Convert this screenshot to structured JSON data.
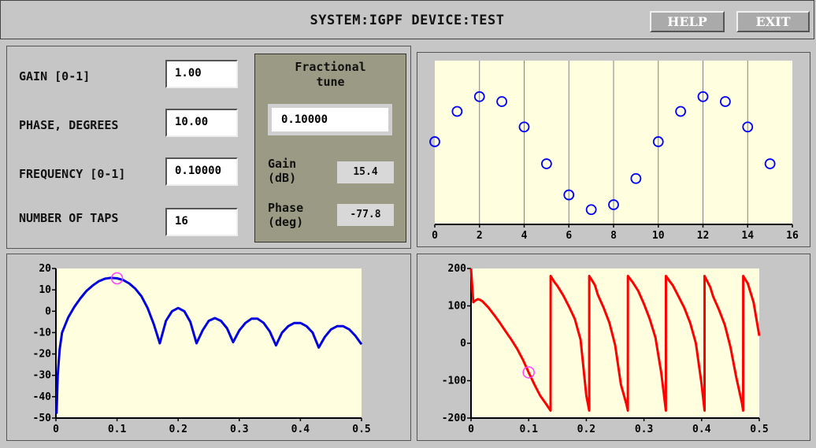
{
  "title": "SYSTEM:IGPF DEVICE:TEST",
  "buttons": {
    "help": "HELP",
    "exit": "EXIT"
  },
  "params": [
    {
      "label": "GAIN [0-1]",
      "value": "1.00"
    },
    {
      "label": "PHASE, DEGREES",
      "value": "10.00"
    },
    {
      "label": "FREQUENCY [0-1]",
      "value": "0.10000"
    },
    {
      "label": "NUMBER OF TAPS",
      "value": "16"
    }
  ],
  "tune": {
    "title_line1": "Fractional",
    "title_line2": "tune",
    "value": "0.10000",
    "gain_label1": "Gain",
    "gain_label2": "(dB)",
    "gain_value": "15.4",
    "phase_label1": "Phase",
    "phase_label2": "(deg)",
    "phase_value": "-77.8"
  },
  "colors": {
    "plot_bg": "#ffffe0",
    "taps": "#0000ff",
    "gain_curve": "#0000e0",
    "phase_curve": "#ff0000",
    "marker": "#ff40ff"
  },
  "chart_data": [
    {
      "type": "scatter",
      "x": [
        0,
        1,
        2,
        3,
        4,
        5,
        6,
        7,
        8,
        9,
        10,
        11,
        12,
        13,
        14,
        15
      ],
      "y": [
        0.01,
        0.38,
        0.56,
        0.5,
        0.19,
        -0.26,
        -0.64,
        -0.82,
        -0.76,
        -0.44,
        0.01,
        0.38,
        0.56,
        0.5,
        0.19,
        -0.26
      ],
      "xlim": [
        0,
        16
      ],
      "ylim": [
        -1,
        1
      ],
      "xticks": [
        0,
        2,
        4,
        6,
        8,
        10,
        12,
        14,
        16
      ],
      "grid": "vertical"
    },
    {
      "type": "line",
      "x": [
        0.001,
        0.003,
        0.006,
        0.01,
        0.02,
        0.03,
        0.04,
        0.05,
        0.06,
        0.07,
        0.08,
        0.09,
        0.1,
        0.11,
        0.12,
        0.13,
        0.14,
        0.15,
        0.16,
        0.17,
        0.18,
        0.19,
        0.2,
        0.21,
        0.22,
        0.23,
        0.24,
        0.25,
        0.26,
        0.27,
        0.28,
        0.29,
        0.3,
        0.31,
        0.32,
        0.33,
        0.34,
        0.35,
        0.36,
        0.37,
        0.38,
        0.39,
        0.4,
        0.41,
        0.42,
        0.43,
        0.44,
        0.45,
        0.46,
        0.47,
        0.48,
        0.49,
        0.5
      ],
      "y": [
        -48,
        -30,
        -18,
        -10,
        -3,
        2,
        6,
        9.5,
        12,
        14,
        15.2,
        15.6,
        15.4,
        14.6,
        13,
        10.5,
        7,
        1.5,
        -6,
        -15,
        -4.5,
        0,
        1.5,
        0,
        -5,
        -15,
        -9,
        -4.5,
        -3.2,
        -4.5,
        -8,
        -14.5,
        -9,
        -5.5,
        -3.5,
        -3.5,
        -5.5,
        -9.5,
        -16,
        -10,
        -7,
        -5.5,
        -5.5,
        -7,
        -10,
        -17,
        -12,
        -8.5,
        -7,
        -7,
        -8.5,
        -11.5,
        -15.5
      ],
      "marker": {
        "x": 0.1,
        "y": 15.4
      },
      "xlim": [
        0,
        0.5
      ],
      "ylim": [
        -50,
        20
      ],
      "xticks": [
        0,
        0.1,
        0.2,
        0.3,
        0.4,
        0.5
      ],
      "yticks": [
        -50,
        -40,
        -30,
        -20,
        -10,
        0,
        10,
        20
      ]
    },
    {
      "type": "line",
      "x": [
        0,
        0.004,
        0.008,
        0.012,
        0.016,
        0.02,
        0.03,
        0.04,
        0.05,
        0.06,
        0.07,
        0.08,
        0.09,
        0.1,
        0.11,
        0.12,
        0.13,
        0.138,
        0.1381,
        0.145,
        0.15,
        0.16,
        0.17,
        0.18,
        0.19,
        0.2,
        0.205,
        0.2051,
        0.21,
        0.215,
        0.22,
        0.23,
        0.24,
        0.25,
        0.26,
        0.27,
        0.272,
        0.2721,
        0.28,
        0.29,
        0.3,
        0.31,
        0.32,
        0.33,
        0.338,
        0.3381,
        0.345,
        0.35,
        0.36,
        0.37,
        0.38,
        0.39,
        0.4,
        0.405,
        0.4051,
        0.41,
        0.415,
        0.42,
        0.43,
        0.44,
        0.45,
        0.46,
        0.47,
        0.472,
        0.4721,
        0.48,
        0.49,
        0.5
      ],
      "y": [
        200,
        110,
        115,
        118,
        116,
        112,
        96,
        76,
        55,
        32,
        10,
        -15,
        -44,
        -77.8,
        -110,
        -140,
        -162,
        -180,
        180,
        163,
        153,
        128,
        98,
        65,
        10,
        -140,
        -180,
        180,
        168,
        155,
        130,
        95,
        55,
        -5,
        -110,
        -165,
        -180,
        180,
        164,
        140,
        105,
        65,
        15,
        -80,
        -180,
        180,
        165,
        155,
        125,
        95,
        55,
        0,
        -110,
        -180,
        180,
        165,
        150,
        125,
        90,
        50,
        -10,
        -90,
        -160,
        -180,
        180,
        160,
        110,
        20
      ],
      "marker": {
        "x": 0.1,
        "y": -77.8
      },
      "xlim": [
        0,
        0.5
      ],
      "ylim": [
        -200,
        200
      ],
      "xticks": [
        0,
        0.1,
        0.2,
        0.3,
        0.4,
        0.5
      ],
      "yticks": [
        -200,
        -100,
        0,
        100,
        200
      ]
    }
  ]
}
